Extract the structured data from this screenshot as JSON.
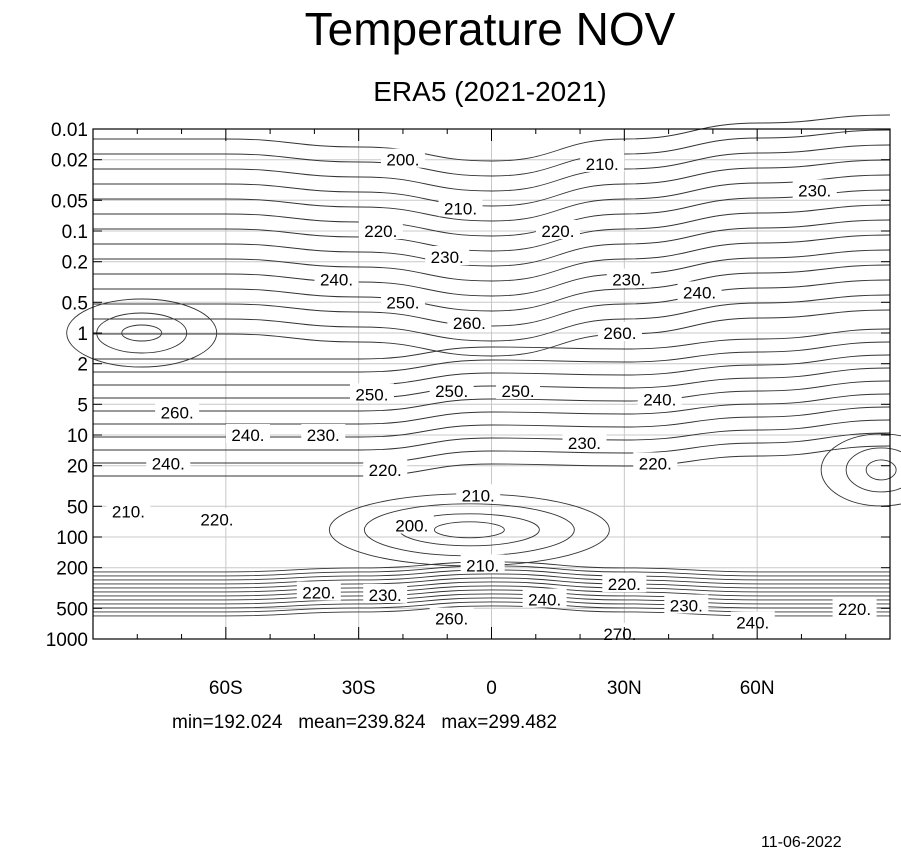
{
  "chart_data": {
    "type": "contour",
    "title": "Temperature NOV",
    "subtitle": "ERA5 (2021-2021)",
    "xlabel": "",
    "ylabel": "",
    "x_ticks": [
      "60S",
      "30S",
      "0",
      "30N",
      "60N"
    ],
    "x_tick_values": [
      -60,
      -30,
      0,
      30,
      60
    ],
    "xlim": [
      -90,
      90
    ],
    "y_ticks": [
      "0.01",
      "0.02",
      "0.05",
      "0.1",
      "0.2",
      "0.5",
      "1",
      "2",
      "5",
      "10",
      "20",
      "50",
      "100",
      "200",
      "500",
      "1000"
    ],
    "y_tick_values": [
      0.01,
      0.02,
      0.05,
      0.1,
      0.2,
      0.5,
      1,
      2,
      5,
      10,
      20,
      50,
      100,
      200,
      500,
      1000
    ],
    "ylim": [
      0.01,
      1000
    ],
    "y_scale": "log",
    "y_reversed": true,
    "grid": true,
    "contour_labels": [
      {
        "text": "200.",
        "lat": -20,
        "p": 0.02
      },
      {
        "text": "210.",
        "lat": 25,
        "p": 0.022
      },
      {
        "text": "230.",
        "lat": 73,
        "p": 0.04
      },
      {
        "text": "210.",
        "lat": -7,
        "p": 0.06
      },
      {
        "text": "220.",
        "lat": -25,
        "p": 0.1
      },
      {
        "text": "220.",
        "lat": 15,
        "p": 0.1
      },
      {
        "text": "230.",
        "lat": -10,
        "p": 0.18
      },
      {
        "text": "240.",
        "lat": -35,
        "p": 0.3
      },
      {
        "text": "230.",
        "lat": 31,
        "p": 0.3
      },
      {
        "text": "240.",
        "lat": 47,
        "p": 0.4
      },
      {
        "text": "250.",
        "lat": -20,
        "p": 0.5
      },
      {
        "text": "260.",
        "lat": -5,
        "p": 0.8
      },
      {
        "text": "260.",
        "lat": 29,
        "p": 1
      },
      {
        "text": "250.",
        "lat": -27,
        "p": 4
      },
      {
        "text": "250.",
        "lat": -9,
        "p": 3.7
      },
      {
        "text": "250.",
        "lat": 6,
        "p": 3.7
      },
      {
        "text": "240.",
        "lat": 38,
        "p": 4.5
      },
      {
        "text": "260.",
        "lat": -71,
        "p": 6
      },
      {
        "text": "240.",
        "lat": -55,
        "p": 10
      },
      {
        "text": "230.",
        "lat": -38,
        "p": 10
      },
      {
        "text": "230.",
        "lat": 21,
        "p": 12
      },
      {
        "text": "240.",
        "lat": -73,
        "p": 19
      },
      {
        "text": "220.",
        "lat": 37,
        "p": 19
      },
      {
        "text": "220.",
        "lat": -24,
        "p": 22
      },
      {
        "text": "210.",
        "lat": -3,
        "p": 39
      },
      {
        "text": "210.",
        "lat": -82,
        "p": 56
      },
      {
        "text": "220.",
        "lat": -62,
        "p": 67
      },
      {
        "text": "200.",
        "lat": -18,
        "p": 77
      },
      {
        "text": "210.",
        "lat": -2,
        "p": 190
      },
      {
        "text": "220.",
        "lat": -39,
        "p": 350
      },
      {
        "text": "230.",
        "lat": -24,
        "p": 370
      },
      {
        "text": "240.",
        "lat": 12,
        "p": 410
      },
      {
        "text": "220.",
        "lat": 30,
        "p": 290
      },
      {
        "text": "230.",
        "lat": 44,
        "p": 470
      },
      {
        "text": "240.",
        "lat": 59,
        "p": 690
      },
      {
        "text": "220.",
        "lat": 82,
        "p": 510
      },
      {
        "text": "260.",
        "lat": -9,
        "p": 630
      },
      {
        "text": "270.",
        "lat": 29,
        "p": 890
      }
    ],
    "stats": {
      "min": "192.024",
      "mean": "239.824",
      "max": "299.482"
    }
  },
  "stats_line": "min=192.024   mean=239.824   max=299.482",
  "date": "11-06-2022"
}
